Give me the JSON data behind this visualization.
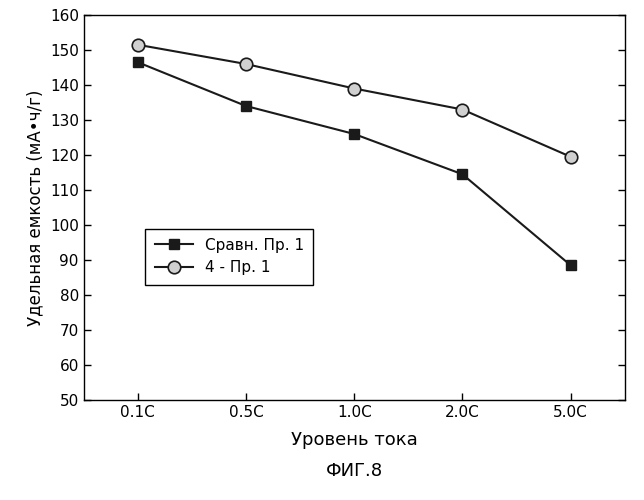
{
  "x_labels": [
    "0.1C",
    "0.5C",
    "1.0C",
    "2.0C",
    "5.0C"
  ],
  "x_positions": [
    0,
    1,
    2,
    3,
    4
  ],
  "series1_label": "Сравн. Пр. 1",
  "series1_values": [
    146.5,
    134.0,
    126.0,
    114.5,
    88.5
  ],
  "series1_color": "#1a1a1a",
  "series1_marker": "s",
  "series2_label": "4 - Пр. 1",
  "series2_values": [
    151.5,
    146.0,
    139.0,
    133.0,
    119.5
  ],
  "series2_color": "#1a1a1a",
  "series2_marker": "o",
  "series2_markerfacecolor": "#d0d0d0",
  "ylabel": "Удельная емкость (мА•ч/г)",
  "xlabel": "Уровень тока",
  "title": "ФИГ.8",
  "ylim_min": 50,
  "ylim_max": 160,
  "yticks": [
    50,
    60,
    70,
    80,
    90,
    100,
    110,
    120,
    130,
    140,
    150,
    160
  ],
  "background_color": "#ffffff",
  "line_width": 1.5,
  "marker_size1": 7,
  "marker_size2": 9
}
